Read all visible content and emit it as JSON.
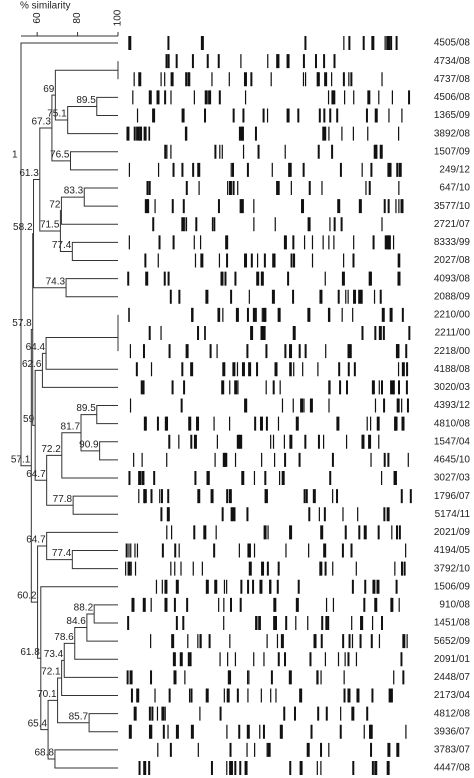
{
  "chart_data": {
    "type": "dendrogram",
    "axis_label": "% similarity",
    "xlim": [
      52,
      100
    ],
    "xticks": [
      60,
      80,
      100
    ],
    "root_label": "1",
    "strains": [
      "4505/08",
      "4734/08",
      "4737/08",
      "4506/08",
      "1365/09",
      "3892/08",
      "1507/09",
      "249/12",
      "647/10",
      "3577/10",
      "2721/07",
      "8333/99",
      "2027/08",
      "4093/08",
      "2088/09",
      "2210/00",
      "2211/00",
      "2218/00",
      "4188/08",
      "3020/03",
      "4393/12",
      "4810/08",
      "1547/04",
      "4645/10",
      "3027/03",
      "1796/07",
      "5174/11",
      "2021/09",
      "4194/05",
      "3792/10",
      "1506/09",
      "910/08",
      "1451/08",
      "5652/09",
      "2091/01",
      "2448/07",
      "2173/04",
      "4812/08",
      "3936/07",
      "3783/07",
      "4447/08"
    ],
    "nodes": [
      {
        "value": 100,
        "show_label": false,
        "children": [
          {
            "strain": 1
          },
          {
            "strain": 2
          }
        ]
      },
      {
        "value": 89.5,
        "show_label": true,
        "children": [
          {
            "strain": 3
          },
          {
            "strain": 4
          }
        ]
      },
      {
        "value": 75.1,
        "show_label": true,
        "children": [
          {
            "node": 1
          },
          {
            "strain": 5
          }
        ]
      },
      {
        "value": 69.0,
        "show_label": true,
        "children": [
          {
            "node": 0
          },
          {
            "node": 2
          }
        ]
      },
      {
        "value": 76.5,
        "show_label": true,
        "children": [
          {
            "strain": 6
          },
          {
            "strain": 7
          }
        ]
      },
      {
        "value": 67.3,
        "show_label": true,
        "children": [
          {
            "node": 3
          },
          {
            "node": 4
          }
        ]
      },
      {
        "value": 83.3,
        "show_label": true,
        "children": [
          {
            "strain": 8
          },
          {
            "strain": 9
          }
        ]
      },
      {
        "value": 72.0,
        "show_label": true,
        "children": [
          {
            "node": 6
          },
          {
            "strain": 10
          }
        ]
      },
      {
        "value": 77.4,
        "show_label": true,
        "children": [
          {
            "strain": 11
          },
          {
            "strain": 12
          }
        ]
      },
      {
        "value": 71.5,
        "show_label": true,
        "children": [
          {
            "node": 7
          },
          {
            "node": 8
          }
        ]
      },
      {
        "value": 61.3,
        "show_label": true,
        "children": [
          {
            "node": 5
          },
          {
            "node": 9
          }
        ]
      },
      {
        "value": 74.3,
        "show_label": true,
        "children": [
          {
            "strain": 13
          },
          {
            "strain": 14
          }
        ]
      },
      {
        "value": 100,
        "show_label": false,
        "children": [
          {
            "strain": 15
          },
          {
            "strain": 16
          }
        ]
      },
      {
        "value": 100,
        "show_label": false,
        "children": [
          {
            "node": 12
          },
          {
            "strain": 17
          }
        ]
      },
      {
        "value": 64.4,
        "show_label": true,
        "children": [
          {
            "node": 13
          },
          {
            "strain": 18
          }
        ]
      },
      {
        "value": 62.6,
        "show_label": true,
        "children": [
          {
            "node": 14
          },
          {
            "strain": 19
          }
        ]
      },
      {
        "value": 89.5,
        "show_label": true,
        "children": [
          {
            "strain": 20
          },
          {
            "strain": 21
          }
        ]
      },
      {
        "value": 90.9,
        "show_label": true,
        "children": [
          {
            "strain": 22
          },
          {
            "strain": 23
          }
        ]
      },
      {
        "value": 81.7,
        "show_label": true,
        "children": [
          {
            "node": 16
          },
          {
            "node": 17
          }
        ]
      },
      {
        "value": 72.2,
        "show_label": true,
        "children": [
          {
            "node": 18
          },
          {
            "strain": 24
          }
        ]
      },
      {
        "value": 77.8,
        "show_label": true,
        "children": [
          {
            "strain": 25
          },
          {
            "strain": 26
          }
        ]
      },
      {
        "value": 64.7,
        "show_label": true,
        "children": [
          {
            "node": 19
          },
          {
            "node": 20
          }
        ]
      },
      {
        "value": 77.4,
        "show_label": true,
        "children": [
          {
            "strain": 28
          },
          {
            "strain": 29
          }
        ]
      },
      {
        "value": 64.7,
        "show_label": true,
        "children": [
          {
            "strain": 27
          },
          {
            "node": 22
          }
        ]
      },
      {
        "value": 88.2,
        "show_label": true,
        "children": [
          {
            "strain": 31
          },
          {
            "strain": 32
          }
        ]
      },
      {
        "value": 84.6,
        "show_label": true,
        "children": [
          {
            "node": 24
          },
          {
            "strain": 33
          }
        ]
      },
      {
        "value": 78.6,
        "show_label": true,
        "children": [
          {
            "node": 25
          },
          {
            "strain": 34
          }
        ]
      },
      {
        "value": 73.4,
        "show_label": true,
        "children": [
          {
            "node": 26
          },
          {
            "strain": 35
          }
        ]
      },
      {
        "value": 72.1,
        "show_label": true,
        "children": [
          {
            "node": 27
          },
          {
            "strain": 36
          }
        ]
      },
      {
        "value": 85.7,
        "show_label": true,
        "children": [
          {
            "strain": 37
          },
          {
            "strain": 38
          }
        ]
      },
      {
        "value": 70.1,
        "show_label": true,
        "children": [
          {
            "node": 28
          },
          {
            "node": 29
          }
        ]
      },
      {
        "value": 68.8,
        "show_label": true,
        "children": [
          {
            "strain": 39
          },
          {
            "strain": 40
          }
        ]
      },
      {
        "value": 65.4,
        "show_label": true,
        "children": [
          {
            "node": 30
          },
          {
            "node": 31
          }
        ]
      },
      {
        "value": 61.8,
        "show_label": true,
        "children": [
          {
            "strain": 30
          },
          {
            "node": 32
          }
        ]
      },
      {
        "value": 60.2,
        "show_label": true,
        "children": [
          {
            "node": 23
          },
          {
            "node": 33
          }
        ]
      },
      {
        "value": 58.2,
        "show_label": true,
        "children": [
          {
            "node": 10
          },
          {
            "node": 11
          }
        ]
      },
      {
        "value": 59.0,
        "show_label": true,
        "children": [
          {
            "node": 15
          },
          {
            "node": 21
          }
        ]
      },
      {
        "value": 57.8,
        "show_label": true,
        "children": [
          {
            "node": 35
          },
          {
            "node": 36
          }
        ]
      },
      {
        "value": 57.1,
        "show_label": true,
        "children": [
          {
            "node": 37
          },
          {
            "node": 34
          }
        ]
      }
    ]
  }
}
